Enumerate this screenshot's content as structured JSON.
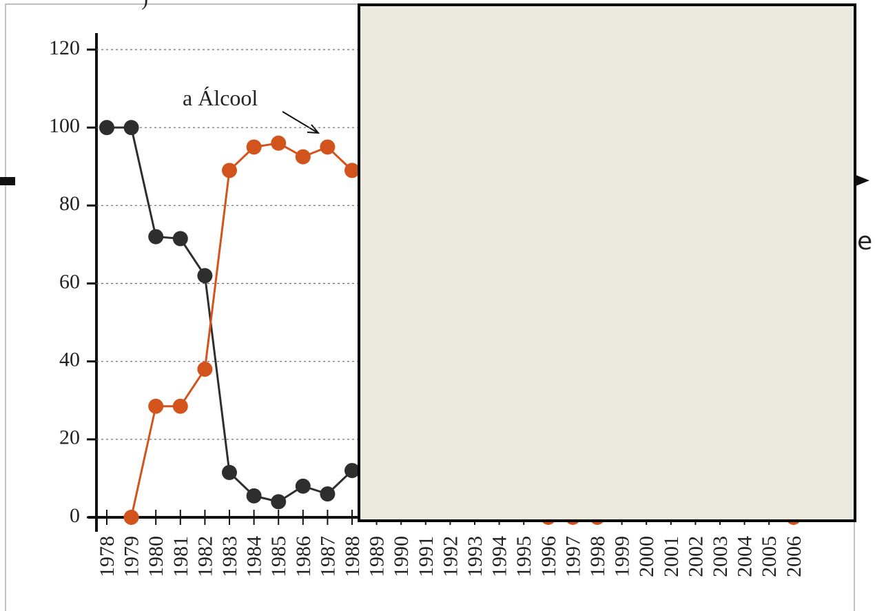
{
  "chart_data": {
    "type": "line",
    "categories": [
      "1978",
      "1979",
      "1980",
      "1981",
      "1982",
      "1983",
      "1984",
      "1985",
      "1986",
      "1987",
      "1988",
      "1989",
      "1990",
      "1991",
      "1992",
      "1993",
      "1994",
      "1995",
      "1996",
      "1997",
      "1998",
      "1999",
      "2000",
      "2001",
      "2002",
      "2003",
      "2004",
      "2005",
      "2006"
    ],
    "series": [
      {
        "color": "#2e2e2e",
        "values": [
          100,
          100,
          72,
          71.5,
          62,
          11.5,
          5.5,
          4,
          8,
          6,
          12,
          null,
          null,
          null,
          null,
          null,
          null,
          null,
          null,
          null,
          null,
          null,
          null,
          null,
          null,
          null,
          null,
          null,
          null
        ]
      },
      {
        "color": "#d2541c",
        "values": [
          null,
          0,
          28.5,
          28.5,
          38,
          89,
          95,
          96,
          92.5,
          95,
          89,
          null,
          null,
          null,
          null,
          null,
          null,
          null,
          0,
          0,
          0,
          null,
          null,
          null,
          null,
          null,
          null,
          null,
          0
        ]
      }
    ],
    "ylim": [
      0,
      120
    ],
    "yticks": [
      0,
      20,
      40,
      60,
      80,
      100,
      120
    ],
    "grid": true,
    "annotation": "a Álcool"
  },
  "fragment_text": "e"
}
